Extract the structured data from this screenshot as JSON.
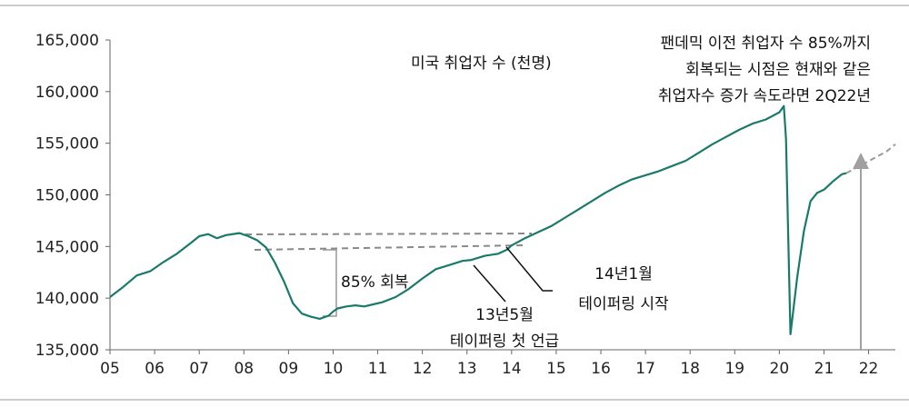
{
  "chart_data": {
    "type": "line",
    "title": "미국 취업자 수 (천명)",
    "xlabel": "",
    "ylabel": "",
    "x_ticks": [
      "05",
      "06",
      "07",
      "08",
      "09",
      "10",
      "11",
      "12",
      "13",
      "14",
      "15",
      "16",
      "17",
      "18",
      "19",
      "20",
      "21",
      "22"
    ],
    "y_ticks": [
      "135,000",
      "140,000",
      "145,000",
      "150,000",
      "155,000",
      "160,000",
      "165,000"
    ],
    "xlim": [
      2005.0,
      2022.6
    ],
    "ylim": [
      135000,
      165000
    ],
    "grid": false,
    "series": [
      {
        "style": "solid",
        "color": "#1a7a6a",
        "x": [
          2005.0,
          2005.3,
          2005.6,
          2005.9,
          2006.2,
          2006.5,
          2006.8,
          2007.0,
          2007.2,
          2007.4,
          2007.6,
          2007.9,
          2008.1,
          2008.3,
          2008.5,
          2008.7,
          2008.9,
          2009.1,
          2009.3,
          2009.5,
          2009.7,
          2009.9,
          2010.0,
          2010.1,
          2010.3,
          2010.5,
          2010.7,
          2010.9,
          2011.1,
          2011.4,
          2011.7,
          2012.0,
          2012.3,
          2012.6,
          2012.9,
          2013.1,
          2013.4,
          2013.7,
          2013.9,
          2014.0,
          2014.3,
          2014.6,
          2014.9,
          2015.2,
          2015.5,
          2015.8,
          2016.1,
          2016.4,
          2016.7,
          2017.0,
          2017.3,
          2017.6,
          2017.9,
          2018.2,
          2018.5,
          2018.8,
          2019.1,
          2019.4,
          2019.7,
          2020.0,
          2020.1,
          2020.15,
          2020.25,
          2020.4,
          2020.55,
          2020.7,
          2020.85,
          2021.0,
          2021.2,
          2021.4,
          2021.5
        ],
        "y": [
          140100,
          141100,
          142200,
          142600,
          143500,
          144300,
          145300,
          146000,
          146200,
          145800,
          146100,
          146300,
          146000,
          145600,
          144900,
          143400,
          141600,
          139500,
          138500,
          138200,
          138000,
          138300,
          138700,
          139000,
          139200,
          139300,
          139200,
          139400,
          139600,
          140100,
          140900,
          141900,
          142800,
          143200,
          143600,
          143700,
          144100,
          144300,
          144700,
          145100,
          145800,
          146400,
          147000,
          147800,
          148600,
          149400,
          150200,
          150900,
          151500,
          151900,
          152300,
          152800,
          153300,
          154100,
          154900,
          155600,
          156300,
          156900,
          157300,
          158000,
          158600,
          155400,
          136500,
          142000,
          146500,
          149400,
          150200,
          150500,
          151300,
          152000,
          152100
        ]
      },
      {
        "style": "dashed",
        "color": "#999999",
        "x": [
          2021.5,
          2021.8,
          2022.1,
          2022.4,
          2022.6
        ],
        "y": [
          152100,
          152800,
          153500,
          154200,
          154900
        ]
      }
    ],
    "annotations": [
      {
        "text": "팬데믹 이전 취업자 수 85%까지"
      },
      {
        "text": "회복되는 시점은 현재와 같은"
      },
      {
        "text": "취업자수 증가 속도라면 2Q22년"
      },
      {
        "text": "85% 회복"
      },
      {
        "text": "14년1월"
      },
      {
        "text": "테이퍼링 시작"
      },
      {
        "text": "13년5월"
      },
      {
        "text": "테이퍼링 첫 언급"
      }
    ]
  }
}
